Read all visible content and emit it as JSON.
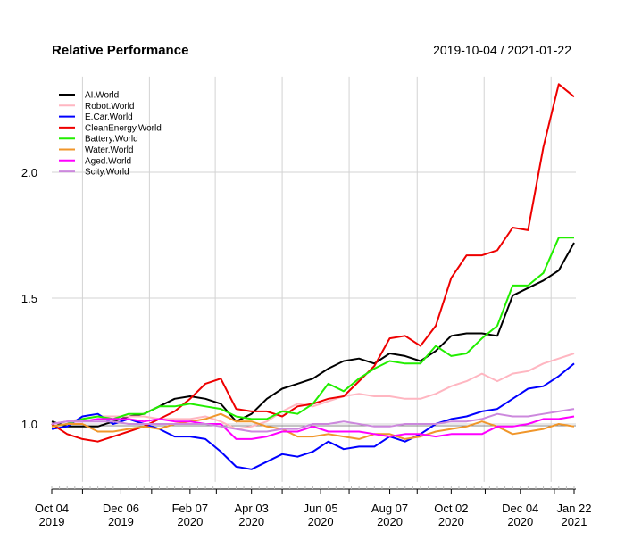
{
  "chart_data": {
    "type": "line",
    "title": "Relative Performance",
    "date_range": "2019-10-04 / 2021-01-22",
    "ylim": [
      0.77,
      2.38
    ],
    "y_ticks": [
      1.0,
      1.5,
      2.0
    ],
    "y_tick_labels": [
      "1.0",
      "1.5",
      "2.0"
    ],
    "reference_line": 1.0,
    "grid": true,
    "legend_placement": "top-left",
    "x_tick_labels": [
      {
        "date": "2019-10-04",
        "line1": "Oct 04",
        "line2": "2019"
      },
      {
        "date": "2019-12-06",
        "line1": "Dec 06",
        "line2": "2019"
      },
      {
        "date": "2020-02-07",
        "line1": "Feb 07",
        "line2": "2020"
      },
      {
        "date": "2020-04-03",
        "line1": "Apr 03",
        "line2": "2020"
      },
      {
        "date": "2020-06-05",
        "line1": "Jun 05",
        "line2": "2020"
      },
      {
        "date": "2020-08-07",
        "line1": "Aug 07",
        "line2": "2020"
      },
      {
        "date": "2020-10-02",
        "line1": "Oct 02",
        "line2": "2020"
      },
      {
        "date": "2020-12-04",
        "line1": "Dec 04",
        "line2": "2020"
      },
      {
        "date": "2021-01-22",
        "line1": "Jan 22",
        "line2": "2021"
      }
    ],
    "x": [
      "2019-10-04",
      "2019-10-18",
      "2019-11-01",
      "2019-11-15",
      "2019-11-29",
      "2019-12-13",
      "2019-12-27",
      "2020-01-10",
      "2020-01-24",
      "2020-02-07",
      "2020-02-21",
      "2020-03-06",
      "2020-03-20",
      "2020-04-03",
      "2020-04-17",
      "2020-05-01",
      "2020-05-15",
      "2020-05-29",
      "2020-06-12",
      "2020-06-26",
      "2020-07-10",
      "2020-07-24",
      "2020-08-07",
      "2020-08-21",
      "2020-09-04",
      "2020-09-18",
      "2020-10-02",
      "2020-10-16",
      "2020-10-30",
      "2020-11-13",
      "2020-11-27",
      "2020-12-11",
      "2020-12-25",
      "2021-01-08",
      "2021-01-22"
    ],
    "series": [
      {
        "name": "AI.World",
        "color": "#000000",
        "values": [
          1.01,
          0.99,
          0.99,
          0.99,
          1.01,
          1.03,
          1.04,
          1.07,
          1.1,
          1.11,
          1.1,
          1.08,
          1.01,
          1.04,
          1.1,
          1.14,
          1.16,
          1.18,
          1.22,
          1.25,
          1.26,
          1.24,
          1.28,
          1.27,
          1.25,
          1.29,
          1.35,
          1.36,
          1.36,
          1.35,
          1.51,
          1.54,
          1.57,
          1.61,
          1.72
        ]
      },
      {
        "name": "Robot.World",
        "color": "#ffb6c1",
        "values": [
          1.0,
          1.01,
          1.02,
          1.03,
          1.03,
          1.03,
          1.03,
          1.02,
          1.02,
          1.02,
          1.03,
          1.01,
          0.98,
          0.99,
          1.01,
          1.05,
          1.08,
          1.07,
          1.09,
          1.11,
          1.12,
          1.11,
          1.11,
          1.1,
          1.1,
          1.12,
          1.15,
          1.17,
          1.2,
          1.17,
          1.2,
          1.21,
          1.24,
          1.26,
          1.28
        ]
      },
      {
        "name": "E.Car.World",
        "color": "#0000ff",
        "values": [
          0.98,
          0.99,
          1.03,
          1.04,
          1.0,
          1.02,
          1.0,
          0.98,
          0.95,
          0.95,
          0.94,
          0.89,
          0.83,
          0.82,
          0.85,
          0.88,
          0.87,
          0.89,
          0.93,
          0.9,
          0.91,
          0.91,
          0.95,
          0.93,
          0.96,
          1.0,
          1.02,
          1.03,
          1.05,
          1.06,
          1.1,
          1.14,
          1.15,
          1.19,
          1.24
        ]
      },
      {
        "name": "CleanEnergy.World",
        "color": "#ee0000",
        "values": [
          1.0,
          0.96,
          0.94,
          0.93,
          0.95,
          0.97,
          0.99,
          1.02,
          1.05,
          1.1,
          1.16,
          1.18,
          1.06,
          1.05,
          1.05,
          1.03,
          1.07,
          1.08,
          1.1,
          1.11,
          1.17,
          1.23,
          1.34,
          1.35,
          1.31,
          1.39,
          1.58,
          1.67,
          1.67,
          1.69,
          1.78,
          1.77,
          2.1,
          2.35,
          2.3
        ]
      },
      {
        "name": "Battery.World",
        "color": "#22ee00",
        "values": [
          0.99,
          1.0,
          1.02,
          1.03,
          1.02,
          1.04,
          1.04,
          1.07,
          1.07,
          1.08,
          1.07,
          1.06,
          1.03,
          1.02,
          1.02,
          1.05,
          1.04,
          1.08,
          1.16,
          1.13,
          1.18,
          1.22,
          1.25,
          1.24,
          1.24,
          1.31,
          1.27,
          1.28,
          1.34,
          1.39,
          1.55,
          1.55,
          1.6,
          1.74,
          1.74
        ]
      },
      {
        "name": "Water.World",
        "color": "#f0962a",
        "values": [
          0.99,
          1.0,
          1.0,
          0.97,
          0.97,
          0.98,
          0.99,
          0.98,
          1.0,
          1.01,
          1.02,
          1.04,
          1.01,
          1.01,
          0.99,
          0.98,
          0.95,
          0.95,
          0.96,
          0.95,
          0.94,
          0.96,
          0.96,
          0.94,
          0.95,
          0.97,
          0.98,
          0.99,
          1.01,
          0.99,
          0.96,
          0.97,
          0.98,
          1.0,
          0.99
        ]
      },
      {
        "name": "Aged.World",
        "color": "#ff00ff",
        "values": [
          1.0,
          1.01,
          1.01,
          1.02,
          1.02,
          1.02,
          1.01,
          1.02,
          1.01,
          1.01,
          1.0,
          1.0,
          0.94,
          0.94,
          0.95,
          0.97,
          0.97,
          0.99,
          0.97,
          0.97,
          0.97,
          0.96,
          0.95,
          0.96,
          0.96,
          0.95,
          0.96,
          0.96,
          0.96,
          0.99,
          0.99,
          1.0,
          1.02,
          1.02,
          1.03
        ]
      },
      {
        "name": "Scity.World",
        "color": "#cc88dd",
        "values": [
          1.0,
          1.01,
          1.01,
          1.01,
          1.01,
          1.0,
          1.0,
          1.0,
          1.0,
          1.0,
          1.0,
          0.99,
          0.98,
          0.97,
          0.97,
          0.98,
          0.98,
          1.0,
          1.0,
          1.01,
          1.0,
          0.99,
          0.99,
          1.0,
          1.0,
          1.0,
          1.01,
          1.01,
          1.02,
          1.04,
          1.03,
          1.03,
          1.04,
          1.05,
          1.06
        ]
      }
    ]
  }
}
